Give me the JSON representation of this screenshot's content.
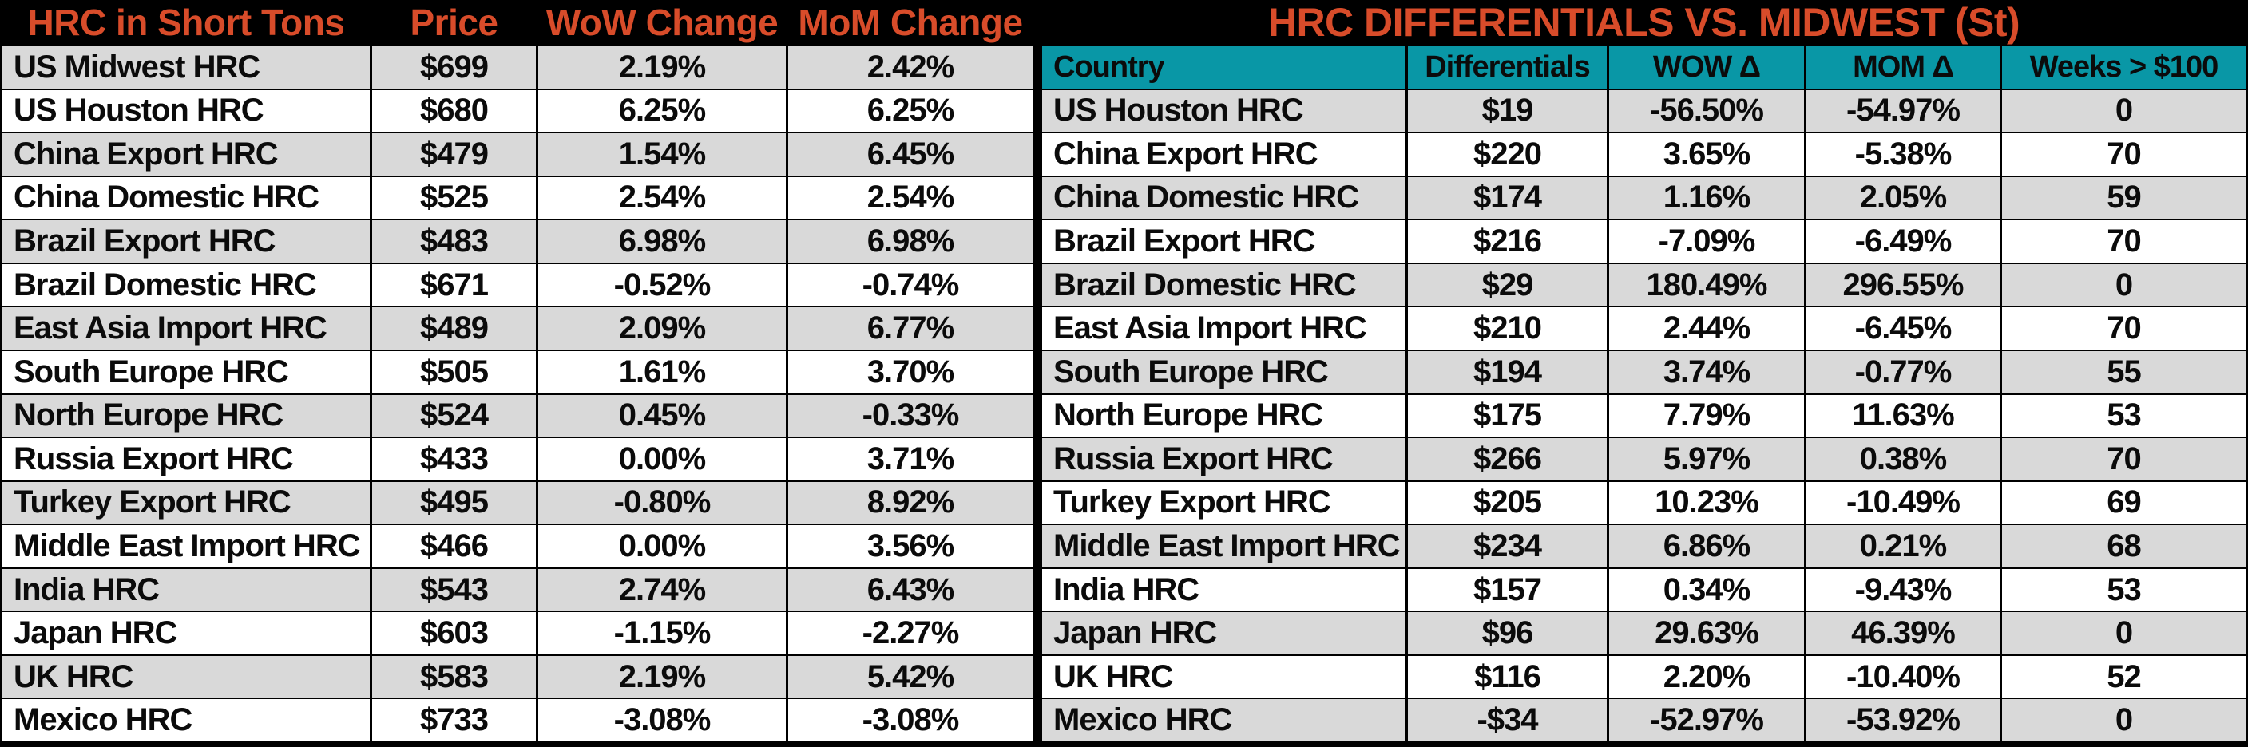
{
  "colors": {
    "background": "#000000",
    "title_orange": "#D84C2A",
    "header_teal": "#0997A6",
    "row_gray": "#D9D9D9",
    "row_white": "#FFFFFF",
    "text": "#0b0b0b"
  },
  "left_table": {
    "headers": [
      "HRC in Short Tons",
      "Price",
      "WoW Change",
      "MoM Change"
    ],
    "rows": [
      {
        "name": "US Midwest HRC",
        "price": "$699",
        "wow": "2.19%",
        "mom": "2.42%"
      },
      {
        "name": "US Houston HRC",
        "price": "$680",
        "wow": "6.25%",
        "mom": "6.25%"
      },
      {
        "name": "China Export HRC",
        "price": "$479",
        "wow": "1.54%",
        "mom": "6.45%"
      },
      {
        "name": "China Domestic HRC",
        "price": "$525",
        "wow": "2.54%",
        "mom": "2.54%"
      },
      {
        "name": "Brazil Export HRC",
        "price": "$483",
        "wow": "6.98%",
        "mom": "6.98%"
      },
      {
        "name": "Brazil Domestic HRC",
        "price": "$671",
        "wow": "-0.52%",
        "mom": "-0.74%"
      },
      {
        "name": "East Asia Import HRC",
        "price": "$489",
        "wow": "2.09%",
        "mom": "6.77%"
      },
      {
        "name": "South Europe HRC",
        "price": "$505",
        "wow": "1.61%",
        "mom": "3.70%"
      },
      {
        "name": "North Europe HRC",
        "price": "$524",
        "wow": "0.45%",
        "mom": "-0.33%"
      },
      {
        "name": "Russia Export HRC",
        "price": "$433",
        "wow": "0.00%",
        "mom": "3.71%"
      },
      {
        "name": "Turkey Export HRC",
        "price": "$495",
        "wow": "-0.80%",
        "mom": "8.92%"
      },
      {
        "name": "Middle East Import HRC",
        "price": "$466",
        "wow": "0.00%",
        "mom": "3.56%"
      },
      {
        "name": "India HRC",
        "price": "$543",
        "wow": "2.74%",
        "mom": "6.43%"
      },
      {
        "name": "Japan HRC",
        "price": "$603",
        "wow": "-1.15%",
        "mom": "-2.27%"
      },
      {
        "name": "UK HRC",
        "price": "$583",
        "wow": "2.19%",
        "mom": "5.42%"
      },
      {
        "name": "Mexico HRC",
        "price": "$733",
        "wow": "-3.08%",
        "mom": "-3.08%"
      }
    ]
  },
  "right_table": {
    "title": "HRC DIFFERENTIALS VS. MIDWEST (St)",
    "headers": [
      "Country",
      "Differentials",
      "WOW Δ",
      "MOM Δ",
      "Weeks > $100"
    ],
    "rows": [
      {
        "name": "US Houston HRC",
        "diff": "$19",
        "wow": "-56.50%",
        "mom": "-54.97%",
        "weeks": "0"
      },
      {
        "name": "China Export HRC",
        "diff": "$220",
        "wow": "3.65%",
        "mom": "-5.38%",
        "weeks": "70"
      },
      {
        "name": "China Domestic HRC",
        "diff": "$174",
        "wow": "1.16%",
        "mom": "2.05%",
        "weeks": "59"
      },
      {
        "name": "Brazil Export HRC",
        "diff": "$216",
        "wow": "-7.09%",
        "mom": "-6.49%",
        "weeks": "70"
      },
      {
        "name": "Brazil Domestic HRC",
        "diff": "$29",
        "wow": "180.49%",
        "mom": "296.55%",
        "weeks": "0"
      },
      {
        "name": "East Asia Import HRC",
        "diff": "$210",
        "wow": "2.44%",
        "mom": "-6.45%",
        "weeks": "70"
      },
      {
        "name": "South Europe HRC",
        "diff": "$194",
        "wow": "3.74%",
        "mom": "-0.77%",
        "weeks": "55"
      },
      {
        "name": "North Europe HRC",
        "diff": "$175",
        "wow": "7.79%",
        "mom": "11.63%",
        "weeks": "53"
      },
      {
        "name": "Russia Export HRC",
        "diff": "$266",
        "wow": "5.97%",
        "mom": "0.38%",
        "weeks": "70"
      },
      {
        "name": "Turkey Export HRC",
        "diff": "$205",
        "wow": "10.23%",
        "mom": "-10.49%",
        "weeks": "69"
      },
      {
        "name": "Middle East Import HRC",
        "diff": "$234",
        "wow": "6.86%",
        "mom": "0.21%",
        "weeks": "68"
      },
      {
        "name": "India HRC",
        "diff": "$157",
        "wow": "0.34%",
        "mom": "-9.43%",
        "weeks": "53"
      },
      {
        "name": "Japan HRC",
        "diff": "$96",
        "wow": "29.63%",
        "mom": "46.39%",
        "weeks": "0"
      },
      {
        "name": "UK HRC",
        "diff": "$116",
        "wow": "2.20%",
        "mom": "-10.40%",
        "weeks": "52"
      },
      {
        "name": "Mexico HRC",
        "diff": "-$34",
        "wow": "-52.97%",
        "mom": "-53.92%",
        "weeks": "0"
      }
    ]
  },
  "chart_data": [
    {
      "type": "table",
      "title": "HRC in Short Tons",
      "columns": [
        "HRC in Short Tons",
        "Price",
        "WoW Change",
        "MoM Change"
      ],
      "rows": [
        [
          "US Midwest HRC",
          699,
          "2.19%",
          "2.42%"
        ],
        [
          "US Houston HRC",
          680,
          "6.25%",
          "6.25%"
        ],
        [
          "China Export HRC",
          479,
          "1.54%",
          "6.45%"
        ],
        [
          "China Domestic HRC",
          525,
          "2.54%",
          "2.54%"
        ],
        [
          "Brazil Export HRC",
          483,
          "6.98%",
          "6.98%"
        ],
        [
          "Brazil Domestic HRC",
          671,
          "-0.52%",
          "-0.74%"
        ],
        [
          "East Asia Import HRC",
          489,
          "2.09%",
          "6.77%"
        ],
        [
          "South Europe HRC",
          505,
          "1.61%",
          "3.70%"
        ],
        [
          "North Europe HRC",
          524,
          "0.45%",
          "-0.33%"
        ],
        [
          "Russia Export HRC",
          433,
          "0.00%",
          "3.71%"
        ],
        [
          "Turkey Export HRC",
          495,
          "-0.80%",
          "8.92%"
        ],
        [
          "Middle East Import HRC",
          466,
          "0.00%",
          "3.56%"
        ],
        [
          "India HRC",
          543,
          "2.74%",
          "6.43%"
        ],
        [
          "Japan HRC",
          603,
          "-1.15%",
          "-2.27%"
        ],
        [
          "UK HRC",
          583,
          "2.19%",
          "5.42%"
        ],
        [
          "Mexico HRC",
          733,
          "-3.08%",
          "-3.08%"
        ]
      ]
    },
    {
      "type": "table",
      "title": "HRC DIFFERENTIALS VS. MIDWEST (St)",
      "columns": [
        "Country",
        "Differentials",
        "WOW Δ",
        "MOM Δ",
        "Weeks > $100"
      ],
      "rows": [
        [
          "US Houston HRC",
          19,
          "-56.50%",
          "-54.97%",
          0
        ],
        [
          "China Export HRC",
          220,
          "3.65%",
          "-5.38%",
          70
        ],
        [
          "China Domestic HRC",
          174,
          "1.16%",
          "2.05%",
          59
        ],
        [
          "Brazil Export HRC",
          216,
          "-7.09%",
          "-6.49%",
          70
        ],
        [
          "Brazil Domestic HRC",
          29,
          "180.49%",
          "296.55%",
          0
        ],
        [
          "East Asia Import HRC",
          210,
          "2.44%",
          "-6.45%",
          70
        ],
        [
          "South Europe HRC",
          194,
          "3.74%",
          "-0.77%",
          55
        ],
        [
          "North Europe HRC",
          175,
          "7.79%",
          "11.63%",
          53
        ],
        [
          "Russia Export HRC",
          266,
          "5.97%",
          "0.38%",
          70
        ],
        [
          "Turkey Export HRC",
          205,
          "10.23%",
          "-10.49%",
          69
        ],
        [
          "Middle East Import HRC",
          234,
          "6.86%",
          "0.21%",
          68
        ],
        [
          "India HRC",
          157,
          "0.34%",
          "-9.43%",
          53
        ],
        [
          "Japan HRC",
          96,
          "29.63%",
          "46.39%",
          0
        ],
        [
          "UK HRC",
          116,
          "2.20%",
          "-10.40%",
          52
        ],
        [
          "Mexico HRC",
          -34,
          "-52.97%",
          "-53.92%",
          0
        ]
      ]
    }
  ]
}
